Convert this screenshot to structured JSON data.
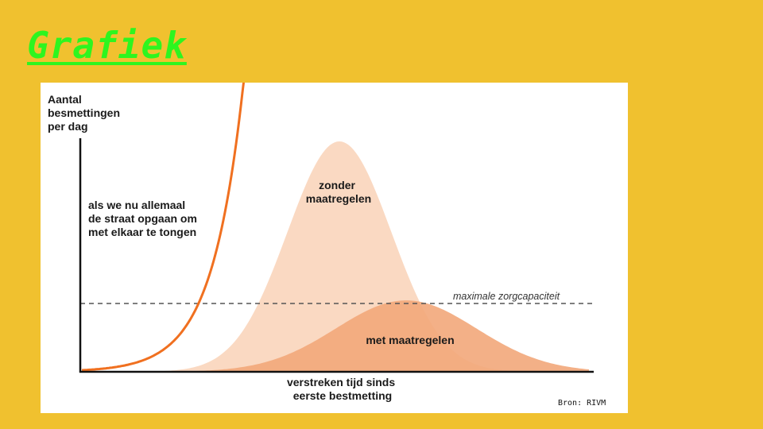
{
  "slide": {
    "title": "Grafiek",
    "source": "Bron: RIVM"
  },
  "colors": {
    "background": "#F0C12F",
    "title": "#2EF51F",
    "no_measures_fill": "#FAD9C2",
    "with_measures_fill": "#F2A77A",
    "street_curve": "#F07020",
    "capacity_line": "#555555"
  },
  "chart_data": {
    "type": "area",
    "y_label_lines": [
      "Aantal",
      "besmettingen",
      "per dag"
    ],
    "x_label_lines": [
      "verstreken tijd sinds",
      "eerste bestmetting"
    ],
    "ticks": "none",
    "grid": false,
    "series": [
      {
        "name_lines": [
          "zonder",
          "maatregelen"
        ],
        "shape": "tall narrow bell",
        "relative_peak": 1.0,
        "fill": "#FAD9C2"
      },
      {
        "name_lines": [
          "met maatregelen"
        ],
        "shape": "low wide bell",
        "relative_peak": 0.31,
        "fill": "#F2A77A"
      },
      {
        "name_lines": [
          "als we nu allemaal",
          "de straat opgaan om",
          "met elkaar te tongen"
        ],
        "shape": "exponential rise",
        "stroke": "#F07020"
      }
    ],
    "reference_line": {
      "label": "maximale zorgcapaciteit",
      "style": "dashed"
    }
  }
}
